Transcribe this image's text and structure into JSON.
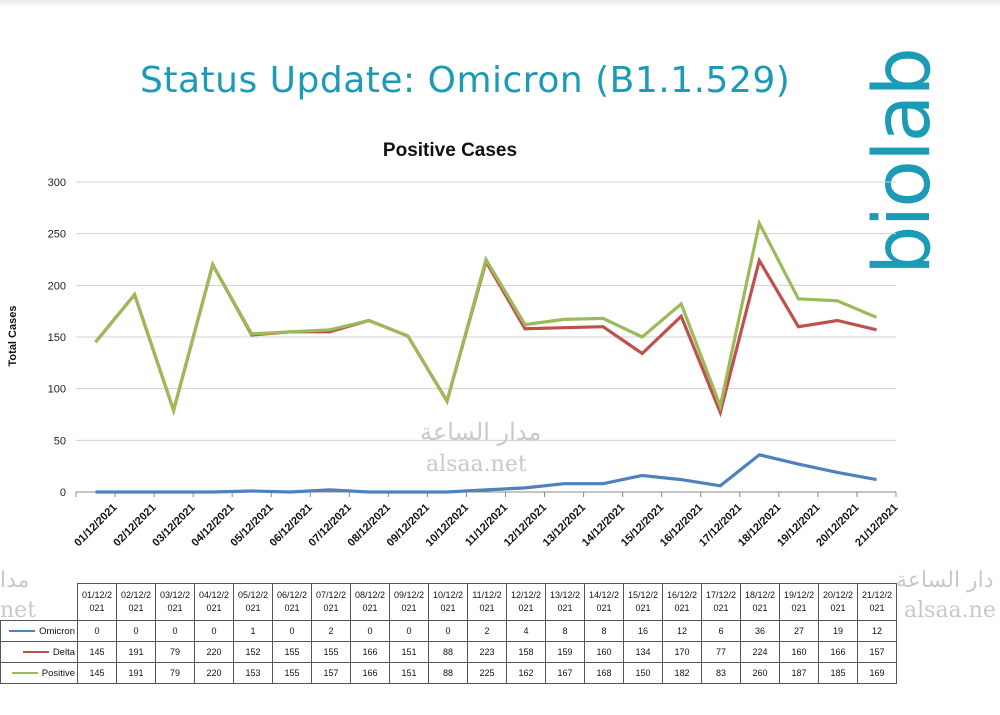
{
  "page": {
    "title": "Status Update: Omicron (B1.1.529)",
    "logo_text": "biolab"
  },
  "watermarks": {
    "arabic": "مدار الساعة",
    "latin": "alsaa.net",
    "left_partial_top": "مدا",
    "left_partial_bottom": "net",
    "right_partial_top": "دار الساعة",
    "right_partial_bottom": "alsaa.ne"
  },
  "colors": {
    "title": "#1b9bb5",
    "omicron": "#4f81bd",
    "delta": "#c0504d",
    "positive": "#9bbb59",
    "grid": "#d0d0d0"
  },
  "chart_data": {
    "type": "line",
    "title": "Positive Cases",
    "xlabel": "",
    "ylabel": "Total Cases",
    "ylim": [
      0,
      300
    ],
    "yticks": [
      0,
      50,
      100,
      150,
      200,
      250,
      300
    ],
    "categories": [
      "01/12/2021",
      "02/12/2021",
      "03/12/2021",
      "04/12/2021",
      "05/12/2021",
      "06/12/2021",
      "07/12/2021",
      "08/12/2021",
      "09/12/2021",
      "10/12/2021",
      "11/12/2021",
      "12/12/2021",
      "13/12/2021",
      "14/12/2021",
      "15/12/2021",
      "16/12/2021",
      "17/12/2021",
      "18/12/2021",
      "19/12/2021",
      "20/12/2021",
      "21/12/2021"
    ],
    "series": [
      {
        "name": "Omicron",
        "color": "#4f81bd",
        "values": [
          0,
          0,
          0,
          0,
          1,
          0,
          2,
          0,
          0,
          0,
          2,
          4,
          8,
          8,
          16,
          12,
          6,
          36,
          27,
          19,
          12
        ]
      },
      {
        "name": "Delta",
        "color": "#c0504d",
        "values": [
          145,
          191,
          79,
          220,
          152,
          155,
          155,
          166,
          151,
          88,
          223,
          158,
          159,
          160,
          134,
          170,
          77,
          224,
          160,
          166,
          157
        ]
      },
      {
        "name": "Positive",
        "color": "#9bbb59",
        "values": [
          145,
          191,
          79,
          220,
          153,
          155,
          157,
          166,
          151,
          88,
          225,
          162,
          167,
          168,
          150,
          182,
          83,
          260,
          187,
          185,
          169
        ]
      }
    ],
    "table_headers": [
      [
        "01/12/2",
        "021"
      ],
      [
        "02/12/2",
        "021"
      ],
      [
        "03/12/2",
        "021"
      ],
      [
        "04/12/2",
        "021"
      ],
      [
        "05/12/2",
        "021"
      ],
      [
        "06/12/2",
        "021"
      ],
      [
        "07/12/2",
        "021"
      ],
      [
        "08/12/2",
        "021"
      ],
      [
        "09/12/2",
        "021"
      ],
      [
        "10/12/2",
        "021"
      ],
      [
        "11/12/2",
        "021"
      ],
      [
        "12/12/2",
        "021"
      ],
      [
        "13/12/2",
        "021"
      ],
      [
        "14/12/2",
        "021"
      ],
      [
        "15/12/2",
        "021"
      ],
      [
        "16/12/2",
        "021"
      ],
      [
        "17/12/2",
        "021"
      ],
      [
        "18/12/2",
        "021"
      ],
      [
        "19/12/2",
        "021"
      ],
      [
        "20/12/2",
        "021"
      ],
      [
        "21/12/2",
        "021"
      ]
    ]
  }
}
